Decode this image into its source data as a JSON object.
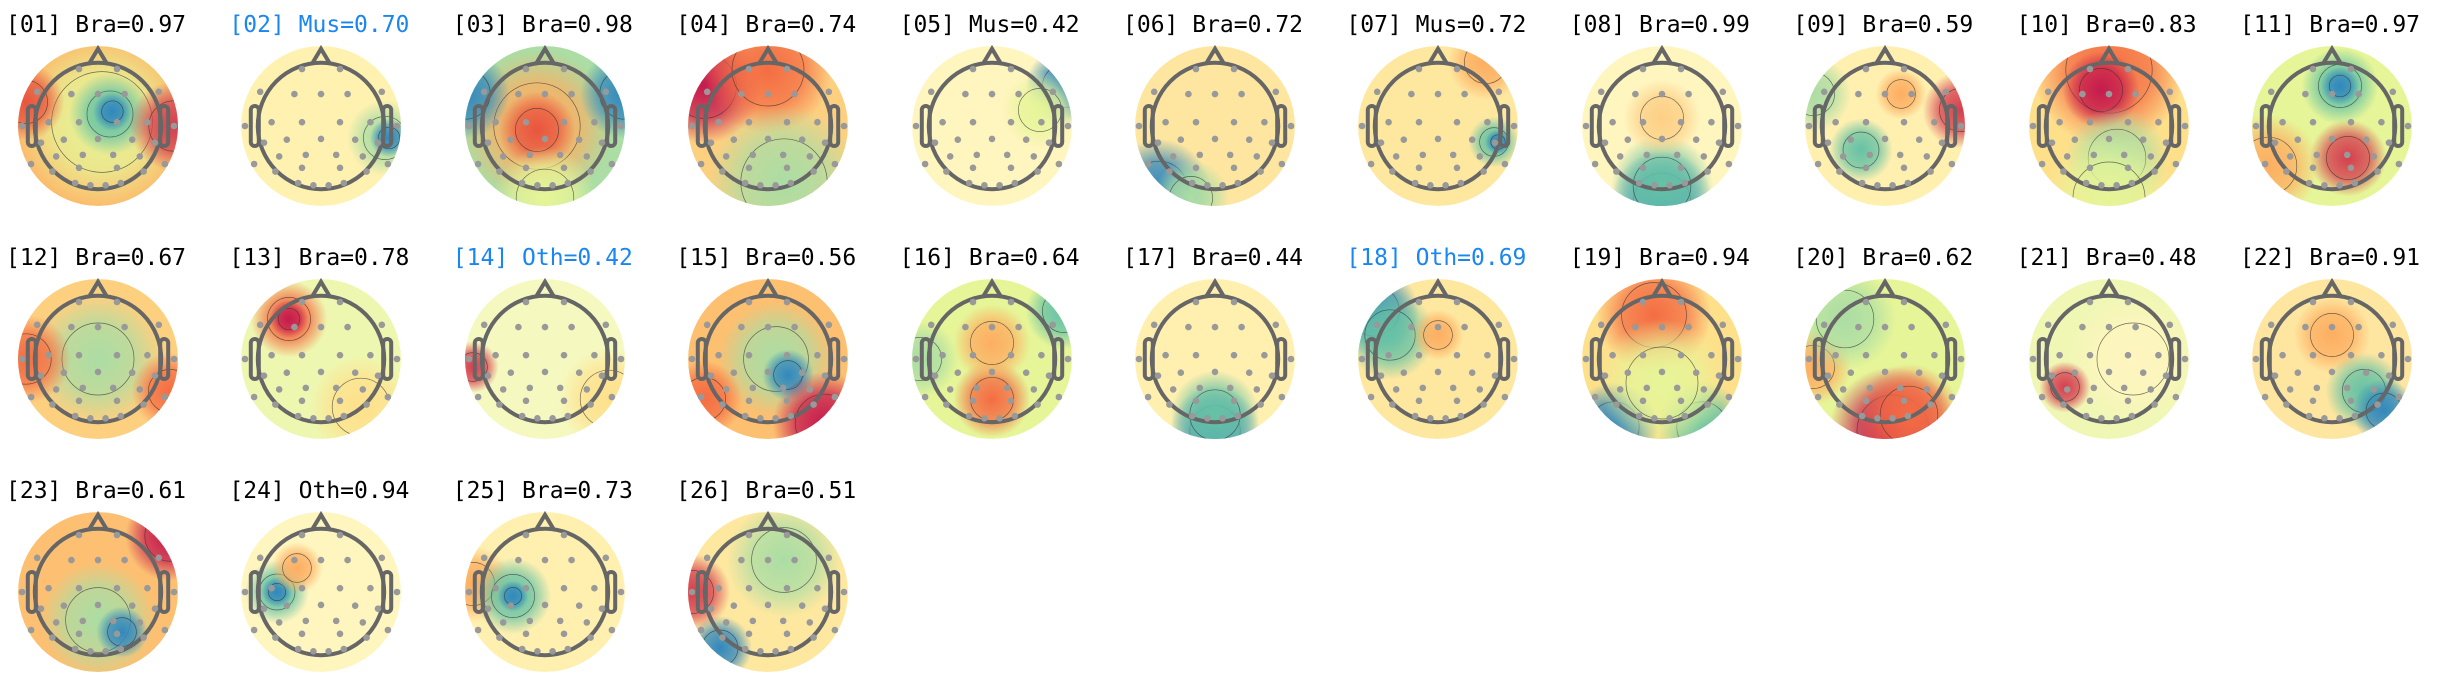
{
  "highlight_color": "#1a86f0",
  "text_color": "#000000",
  "head_outline_color": "#666666",
  "electrode_color": "#999999",
  "colormap": [
    "#5e4fa2",
    "#3288bd",
    "#66c2a5",
    "#abdda4",
    "#e6f598",
    "#ffffbf",
    "#fee08b",
    "#fdae61",
    "#f46d43",
    "#d53e4f",
    "#9e0142"
  ],
  "components": [
    {
      "label": "[01] Bra=0.97",
      "highlighted": false
    },
    {
      "label": "[02] Mus=0.70",
      "highlighted": true
    },
    {
      "label": "[03] Bra=0.98",
      "highlighted": false
    },
    {
      "label": "[04] Bra=0.74",
      "highlighted": false
    },
    {
      "label": "[05] Mus=0.42",
      "highlighted": false
    },
    {
      "label": "[06] Bra=0.72",
      "highlighted": false
    },
    {
      "label": "[07] Mus=0.72",
      "highlighted": false
    },
    {
      "label": "[08] Bra=0.99",
      "highlighted": false
    },
    {
      "label": "[09] Bra=0.59",
      "highlighted": false
    },
    {
      "label": "[10] Bra=0.83",
      "highlighted": false
    },
    {
      "label": "[11] Bra=0.97",
      "highlighted": false
    },
    {
      "label": "[12] Bra=0.67",
      "highlighted": false
    },
    {
      "label": "[13] Bra=0.78",
      "highlighted": false
    },
    {
      "label": "[14] Oth=0.42",
      "highlighted": true
    },
    {
      "label": "[15] Bra=0.56",
      "highlighted": false
    },
    {
      "label": "[16] Bra=0.64",
      "highlighted": false
    },
    {
      "label": "[17] Bra=0.44",
      "highlighted": false
    },
    {
      "label": "[18] Oth=0.69",
      "highlighted": true
    },
    {
      "label": "[19] Bra=0.94",
      "highlighted": false
    },
    {
      "label": "[20] Bra=0.62",
      "highlighted": false
    },
    {
      "label": "[21] Bra=0.48",
      "highlighted": false
    },
    {
      "label": "[22] Bra=0.91",
      "highlighted": false
    },
    {
      "label": "[23] Bra=0.61",
      "highlighted": false
    },
    {
      "label": "[24] Oth=0.94",
      "highlighted": false
    },
    {
      "label": "[25] Bra=0.73",
      "highlighted": false
    },
    {
      "label": "[26] Bra=0.51",
      "highlighted": false
    }
  ]
}
